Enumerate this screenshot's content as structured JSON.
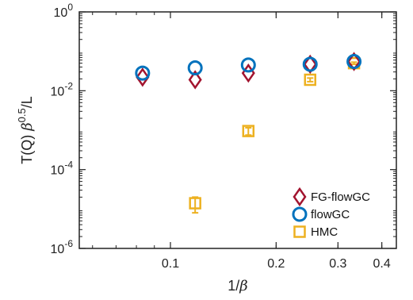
{
  "chart_data": {
    "type": "scatter",
    "xlabel": "1/β",
    "ylabel": "T(Q) β^0.5/L",
    "xscale": "log",
    "yscale": "log",
    "xlim": [
      0.055,
      0.44
    ],
    "ylim": [
      1e-06,
      1
    ],
    "x_ticks": [
      0.1,
      0.2,
      0.3,
      0.4
    ],
    "x_tick_labels": [
      "0.1",
      "0.2",
      "0.3",
      "0.4"
    ],
    "y_ticks": [
      1e-06,
      0.0001,
      0.01,
      1
    ],
    "y_tick_labels": [
      {
        "base": "10",
        "exp": "-6"
      },
      {
        "base": "10",
        "exp": "-4"
      },
      {
        "base": "10",
        "exp": "-2"
      },
      {
        "base": "10",
        "exp": "0"
      }
    ],
    "grid": false,
    "legend_position": "bottom-right",
    "series": [
      {
        "name": "FG-flowGC",
        "marker": "diamond",
        "color": "#A2142F",
        "points": [
          {
            "x": 0.0833,
            "y": 0.022
          },
          {
            "x": 0.1176,
            "y": 0.019
          },
          {
            "x": 0.1667,
            "y": 0.028
          },
          {
            "x": 0.25,
            "y": 0.047
          },
          {
            "x": 0.3333,
            "y": 0.055
          }
        ]
      },
      {
        "name": "flowGC",
        "marker": "circle",
        "color": "#0072BD",
        "points": [
          {
            "x": 0.0833,
            "y": 0.028
          },
          {
            "x": 0.1176,
            "y": 0.038
          },
          {
            "x": 0.1667,
            "y": 0.045
          },
          {
            "x": 0.25,
            "y": 0.047
          },
          {
            "x": 0.3333,
            "y": 0.055
          }
        ]
      },
      {
        "name": "HMC",
        "marker": "square",
        "color": "#EDB120",
        "points": [
          {
            "x": 0.1176,
            "y": 1.4e-05,
            "err": 6e-06
          },
          {
            "x": 0.1667,
            "y": 0.00095,
            "err": 0.0002
          },
          {
            "x": 0.25,
            "y": 0.019,
            "err": 0.002
          },
          {
            "x": 0.3333,
            "y": 0.05,
            "err": 0.003
          }
        ]
      }
    ]
  }
}
